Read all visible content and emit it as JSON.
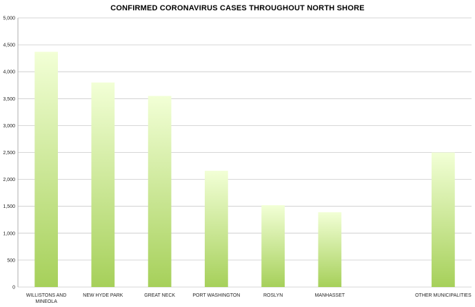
{
  "chart_data": {
    "type": "bar",
    "title": "CONFIRMED CORONAVIRUS CASES THROUGHOUT NORTH SHORE",
    "xlabel": "",
    "ylabel": "",
    "ylim": [
      0,
      5000
    ],
    "yticks": [
      0,
      500,
      1000,
      1500,
      2000,
      2500,
      3000,
      3500,
      4000,
      4500,
      5000
    ],
    "ytick_labels": [
      "0",
      "500",
      "1,000",
      "1,500",
      "2,000",
      "2,500",
      "3,000",
      "3,500",
      "4,000",
      "4,500",
      "5,000"
    ],
    "categories": [
      [
        "WILLISTONS AND",
        "MINEOLA"
      ],
      [
        "NEW HYDE PARK"
      ],
      [
        "GREAT NECK"
      ],
      [
        "PORT WASHINGTON"
      ],
      [
        "ROSLYN"
      ],
      [
        "MANHASSET"
      ],
      [
        ""
      ],
      [
        "OTHER MUNICIPALITIES"
      ]
    ],
    "values": [
      4370,
      3800,
      3550,
      2160,
      1520,
      1390,
      0,
      2500
    ],
    "grid": true,
    "bar_color_top": "#f2ffd6",
    "bar_color_bottom": "#a6d05a",
    "grid_color": "#c8c8c8"
  }
}
